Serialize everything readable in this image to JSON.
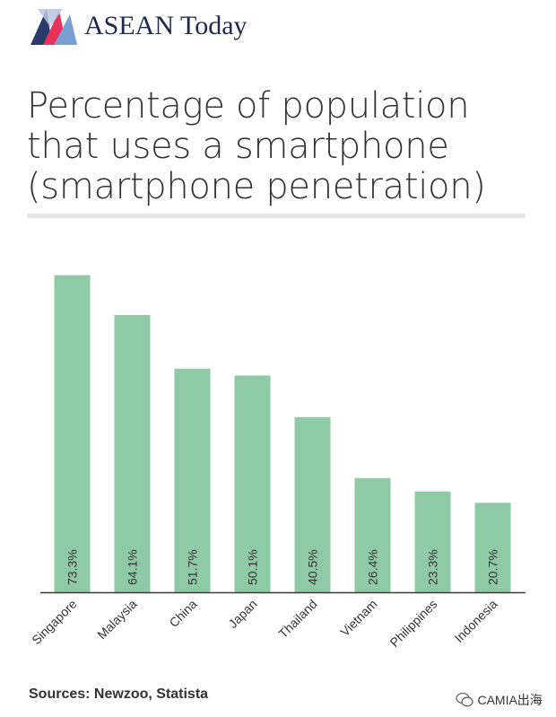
{
  "header": {
    "brand": "ASEAN Today",
    "title_lines": [
      "Percentage of population",
      "that uses a smartphone",
      "(smartphone penetration)"
    ]
  },
  "footer": {
    "sources": "Sources: Newzoo, Statista",
    "watermark": "CAMIA出海"
  },
  "colors": {
    "bar": "#8ecaa6",
    "axis": "#3a3a3a",
    "label": "#333333"
  },
  "chart_data": {
    "type": "bar",
    "title": "Percentage of population that uses a smartphone (smartphone penetration)",
    "xlabel": "",
    "ylabel": "",
    "ylim": [
      0,
      80
    ],
    "categories": [
      "Singapore",
      "Malaysia",
      "China",
      "Japan",
      "Thailand",
      "Vietnam",
      "Philippines",
      "Indonesia"
    ],
    "values": [
      73.3,
      64.1,
      51.7,
      50.1,
      40.5,
      26.4,
      23.3,
      20.7
    ],
    "value_labels": [
      "73.3%",
      "64.1%",
      "51.7%",
      "50.1%",
      "40.5%",
      "26.4%",
      "23.3%",
      "20.7%"
    ],
    "unit": "%",
    "grid": false,
    "legend": "none"
  }
}
